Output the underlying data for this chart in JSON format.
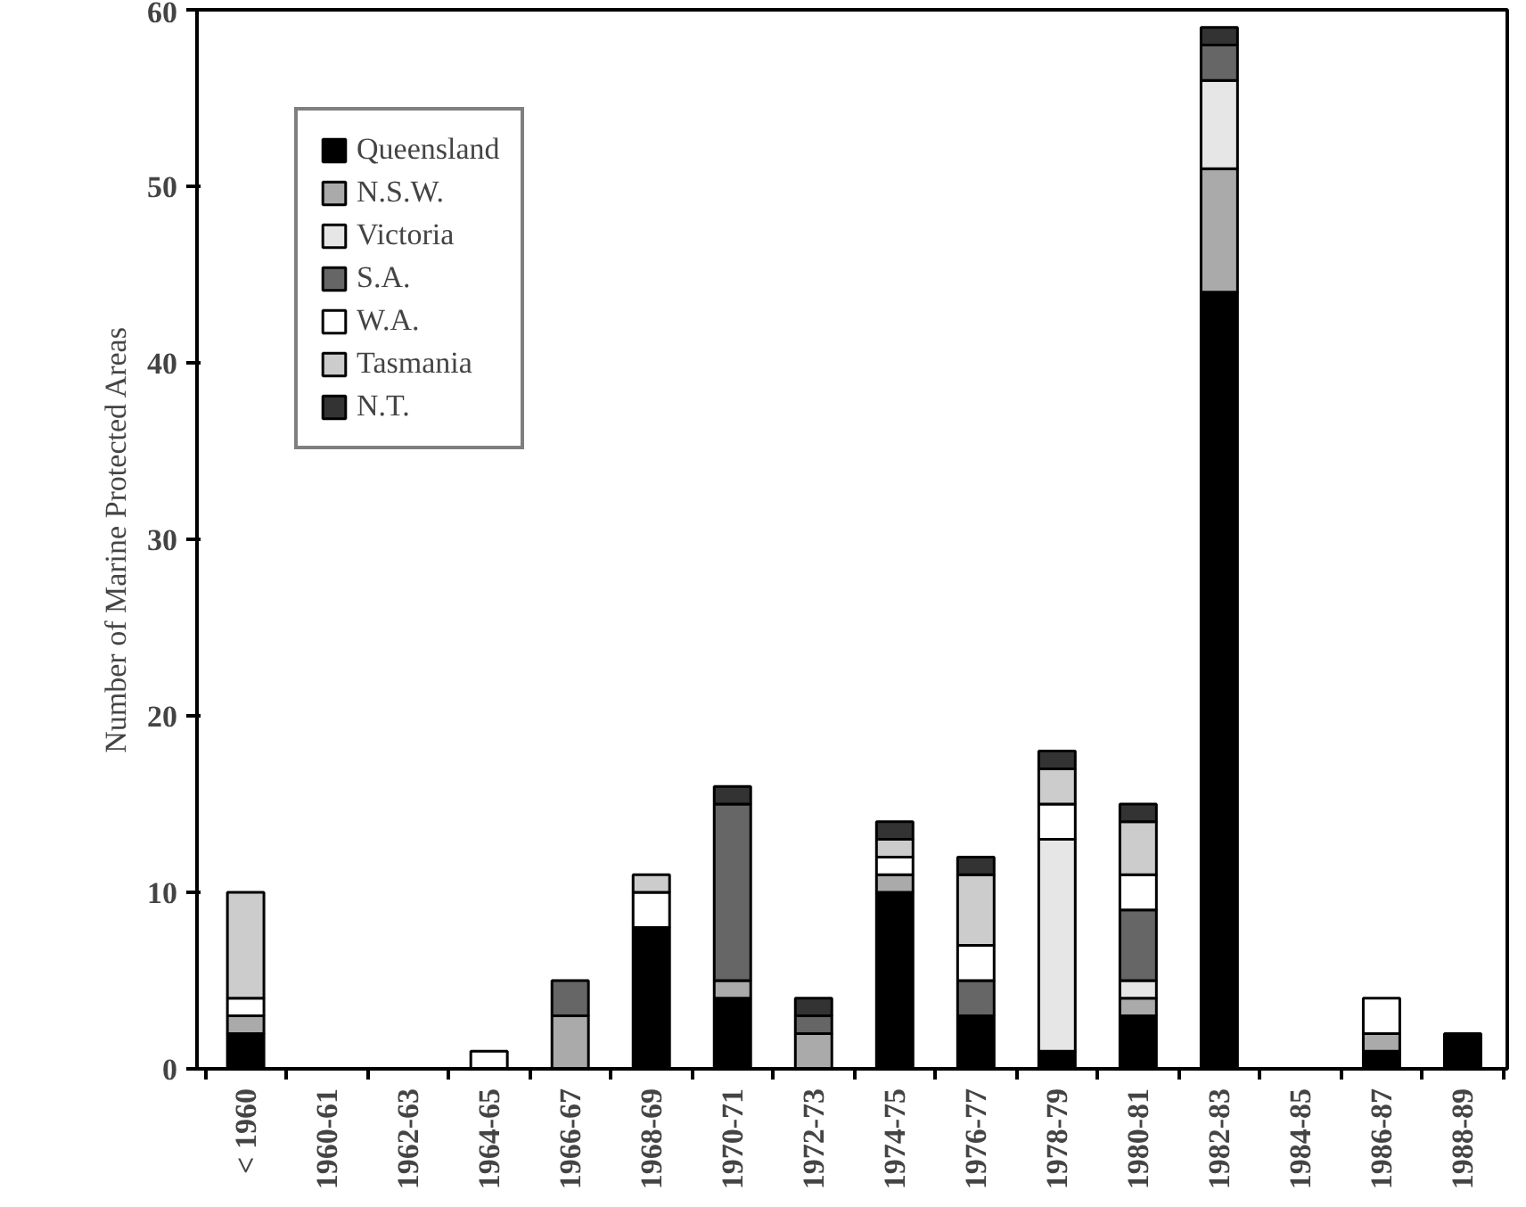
{
  "chart_data": {
    "type": "bar",
    "stacked": true,
    "ylabel": "Number of Marine Protected Areas",
    "categories": [
      "< 1960",
      "1960-61",
      "1962-63",
      "1964-65",
      "1966-67",
      "1968-69",
      "1970-71",
      "1972-73",
      "1974-75",
      "1976-77",
      "1978-79",
      "1980-81",
      "1982-83",
      "1984-85",
      "1986-87",
      "1988-89"
    ],
    "series": [
      {
        "name": "Queensland",
        "color": "#000000",
        "values": [
          2,
          0,
          0,
          0,
          0,
          8,
          4,
          0,
          10,
          3,
          1,
          3,
          44,
          0,
          1,
          2
        ]
      },
      {
        "name": "N.S.W.",
        "color": "#aaaaaa",
        "values": [
          1,
          0,
          0,
          0,
          3,
          0,
          1,
          2,
          1,
          0,
          0,
          1,
          7,
          0,
          1,
          0
        ]
      },
      {
        "name": "Victoria",
        "color": "#e6e6e6",
        "values": [
          0,
          0,
          0,
          0,
          0,
          0,
          0,
          0,
          0,
          0,
          12,
          1,
          5,
          0,
          0,
          0
        ]
      },
      {
        "name": "S.A.",
        "color": "#666666",
        "values": [
          0,
          0,
          0,
          0,
          2,
          0,
          10,
          1,
          0,
          2,
          0,
          4,
          2,
          0,
          0,
          0
        ]
      },
      {
        "name": "W.A.",
        "color": "#ffffff",
        "values": [
          1,
          0,
          0,
          1,
          0,
          2,
          0,
          0,
          1,
          2,
          2,
          2,
          0,
          0,
          2,
          0
        ]
      },
      {
        "name": "Tasmania",
        "color": "#cccccc",
        "values": [
          6,
          0,
          0,
          0,
          0,
          1,
          0,
          0,
          1,
          4,
          2,
          3,
          0,
          0,
          0,
          0
        ]
      },
      {
        "name": "N.T.",
        "color": "#333333",
        "values": [
          0,
          0,
          0,
          0,
          0,
          0,
          1,
          1,
          1,
          1,
          1,
          1,
          1,
          0,
          0,
          0
        ]
      }
    ],
    "ylim": [
      0,
      60
    ],
    "yticks": [
      0,
      10,
      20,
      30,
      40,
      50,
      60
    ],
    "legend": "top left",
    "grid": false
  }
}
